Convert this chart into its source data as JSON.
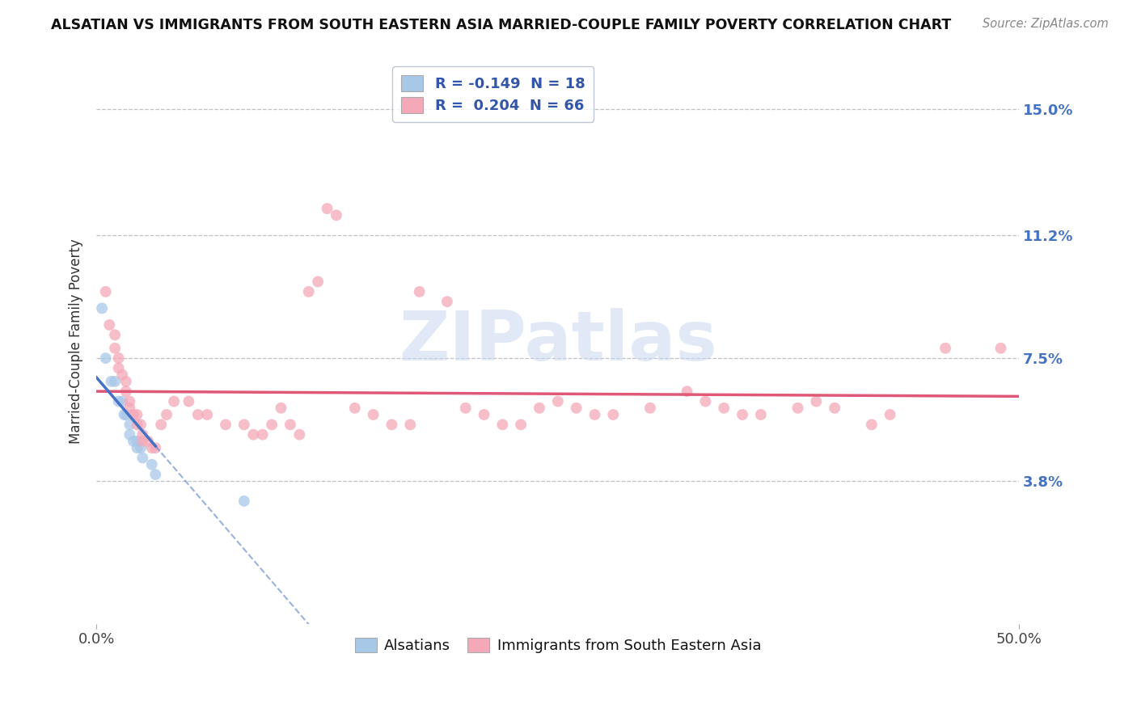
{
  "title": "ALSATIAN VS IMMIGRANTS FROM SOUTH EASTERN ASIA MARRIED-COUPLE FAMILY POVERTY CORRELATION CHART",
  "source": "Source: ZipAtlas.com",
  "ylabel": "Married-Couple Family Poverty",
  "xlim": [
    0.0,
    0.5
  ],
  "ylim": [
    -0.005,
    0.165
  ],
  "yticks": [
    0.0,
    0.038,
    0.075,
    0.112,
    0.15
  ],
  "ytick_labels": [
    "",
    "3.8%",
    "7.5%",
    "11.2%",
    "15.0%"
  ],
  "legend_r1": "R = -0.149  N = 18",
  "legend_r2": "R =  0.204  N = 66",
  "blue_color": "#a8c8e8",
  "pink_color": "#f4a8b8",
  "blue_line_color": "#4472c4",
  "pink_line_color": "#e05878",
  "blue_scatter": [
    [
      0.003,
      0.09
    ],
    [
      0.005,
      0.075
    ],
    [
      0.008,
      0.068
    ],
    [
      0.01,
      0.068
    ],
    [
      0.012,
      0.062
    ],
    [
      0.014,
      0.062
    ],
    [
      0.015,
      0.058
    ],
    [
      0.016,
      0.058
    ],
    [
      0.018,
      0.055
    ],
    [
      0.018,
      0.052
    ],
    [
      0.02,
      0.05
    ],
    [
      0.022,
      0.05
    ],
    [
      0.022,
      0.048
    ],
    [
      0.024,
      0.048
    ],
    [
      0.025,
      0.045
    ],
    [
      0.03,
      0.043
    ],
    [
      0.032,
      0.04
    ],
    [
      0.08,
      0.032
    ]
  ],
  "pink_scatter": [
    [
      0.005,
      0.095
    ],
    [
      0.007,
      0.085
    ],
    [
      0.01,
      0.082
    ],
    [
      0.01,
      0.078
    ],
    [
      0.012,
      0.075
    ],
    [
      0.012,
      0.072
    ],
    [
      0.014,
      0.07
    ],
    [
      0.016,
      0.068
    ],
    [
      0.016,
      0.065
    ],
    [
      0.018,
      0.062
    ],
    [
      0.018,
      0.06
    ],
    [
      0.02,
      0.058
    ],
    [
      0.022,
      0.058
    ],
    [
      0.022,
      0.055
    ],
    [
      0.024,
      0.055
    ],
    [
      0.025,
      0.052
    ],
    [
      0.025,
      0.05
    ],
    [
      0.028,
      0.05
    ],
    [
      0.03,
      0.048
    ],
    [
      0.032,
      0.048
    ],
    [
      0.035,
      0.055
    ],
    [
      0.038,
      0.058
    ],
    [
      0.042,
      0.062
    ],
    [
      0.05,
      0.062
    ],
    [
      0.055,
      0.058
    ],
    [
      0.06,
      0.058
    ],
    [
      0.07,
      0.055
    ],
    [
      0.08,
      0.055
    ],
    [
      0.085,
      0.052
    ],
    [
      0.09,
      0.052
    ],
    [
      0.095,
      0.055
    ],
    [
      0.1,
      0.06
    ],
    [
      0.105,
      0.055
    ],
    [
      0.11,
      0.052
    ],
    [
      0.115,
      0.095
    ],
    [
      0.12,
      0.098
    ],
    [
      0.125,
      0.12
    ],
    [
      0.13,
      0.118
    ],
    [
      0.14,
      0.06
    ],
    [
      0.15,
      0.058
    ],
    [
      0.16,
      0.055
    ],
    [
      0.17,
      0.055
    ],
    [
      0.175,
      0.095
    ],
    [
      0.19,
      0.092
    ],
    [
      0.2,
      0.06
    ],
    [
      0.21,
      0.058
    ],
    [
      0.22,
      0.055
    ],
    [
      0.23,
      0.055
    ],
    [
      0.24,
      0.06
    ],
    [
      0.25,
      0.062
    ],
    [
      0.26,
      0.06
    ],
    [
      0.27,
      0.058
    ],
    [
      0.28,
      0.058
    ],
    [
      0.3,
      0.06
    ],
    [
      0.32,
      0.065
    ],
    [
      0.33,
      0.062
    ],
    [
      0.34,
      0.06
    ],
    [
      0.35,
      0.058
    ],
    [
      0.36,
      0.058
    ],
    [
      0.38,
      0.06
    ],
    [
      0.39,
      0.062
    ],
    [
      0.4,
      0.06
    ],
    [
      0.42,
      0.055
    ],
    [
      0.43,
      0.058
    ],
    [
      0.46,
      0.078
    ],
    [
      0.49,
      0.078
    ]
  ],
  "watermark_text": "ZIPatlas",
  "watermark_color": "#c8d8ee",
  "background_color": "#ffffff",
  "grid_color": "#c0c0c8"
}
